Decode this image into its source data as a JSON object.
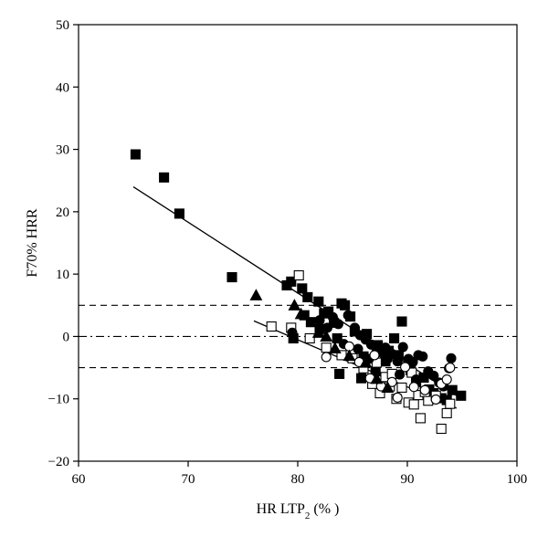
{
  "chart_data": {
    "type": "scatter",
    "xlabel": "HR LTP",
    "xlabel_sub": "2",
    "xlabel_unit": " (% )",
    "ylabel": "F70% HRR",
    "xlim": [
      60,
      100
    ],
    "ylim": [
      -20,
      50
    ],
    "xticks": [
      "60",
      "70",
      "80",
      "90",
      "100"
    ],
    "yticks": [
      "50",
      "40",
      "30",
      "20",
      "10",
      "0",
      "−10",
      "−20"
    ],
    "xtick_values": [
      60,
      70,
      80,
      90,
      100
    ],
    "ytick_values": [
      50,
      40,
      30,
      20,
      10,
      0,
      -10,
      -20
    ],
    "grid": false,
    "reference_lines": [
      {
        "y": 5,
        "style": "dashed"
      },
      {
        "y": 0,
        "style": "dashdot"
      },
      {
        "y": -5,
        "style": "dashed"
      }
    ],
    "regression_lines": [
      {
        "x": [
          65,
          94.5
        ],
        "y": [
          24,
          -9.5
        ]
      },
      {
        "x": [
          76,
          94.5
        ],
        "y": [
          2.5,
          -11.5
        ]
      }
    ],
    "series": [
      {
        "marker": "square-filled",
        "points": [
          [
            65.2,
            29.2
          ],
          [
            67.8,
            25.5
          ],
          [
            69.2,
            19.7
          ],
          [
            74,
            9.5
          ],
          [
            79,
            8.2
          ],
          [
            79.4,
            8.8
          ],
          [
            80.4,
            7.7
          ],
          [
            80.9,
            6.3
          ],
          [
            81.9,
            5.6
          ],
          [
            82.4,
            3.7
          ],
          [
            82.8,
            4.0
          ],
          [
            83.3,
            2.2
          ],
          [
            84.0,
            5.3
          ],
          [
            84.3,
            5.0
          ],
          [
            84.8,
            3.2
          ],
          [
            83.6,
            -0.3
          ],
          [
            83.8,
            -6.0
          ],
          [
            85.8,
            -6.7
          ],
          [
            86.3,
            0.4
          ],
          [
            87.3,
            -1.4
          ],
          [
            87.8,
            -2.1
          ],
          [
            88.3,
            -2.3
          ],
          [
            88.8,
            -0.3
          ],
          [
            89.5,
            2.4
          ],
          [
            90.3,
            -5.4
          ],
          [
            91.5,
            -6.6
          ],
          [
            92.0,
            -8.5
          ],
          [
            92.4,
            -9.1
          ],
          [
            93.1,
            -9.9
          ],
          [
            93.6,
            -10.2
          ],
          [
            94.1,
            -8.6
          ],
          [
            94.9,
            -9.5
          ],
          [
            79.6,
            -0.3
          ],
          [
            80.6,
            3.4
          ],
          [
            81.2,
            2.3
          ],
          [
            82.0,
            1.2
          ],
          [
            85.2,
            0.8
          ],
          [
            86.0,
            -3.2
          ],
          [
            87.1,
            -5.6
          ],
          [
            88.0,
            -4.0
          ],
          [
            89.2,
            -3.0
          ],
          [
            90.8,
            -7.3
          ]
        ]
      },
      {
        "marker": "square-open",
        "points": [
          [
            77.6,
            1.6
          ],
          [
            79.4,
            1.4
          ],
          [
            80.1,
            9.8
          ],
          [
            81.1,
            -0.3
          ],
          [
            82.6,
            -1.8
          ],
          [
            84.0,
            -3.0
          ],
          [
            85.0,
            -3.5
          ],
          [
            86.0,
            -5.1
          ],
          [
            86.8,
            -7.6
          ],
          [
            87.5,
            -9.1
          ],
          [
            88.0,
            -6.5
          ],
          [
            88.4,
            -8.0
          ],
          [
            89.0,
            -10.0
          ],
          [
            89.5,
            -8.2
          ],
          [
            90.1,
            -10.6
          ],
          [
            90.6,
            -10.9
          ],
          [
            91.0,
            -9.4
          ],
          [
            91.2,
            -13.1
          ],
          [
            91.9,
            -10.3
          ],
          [
            92.6,
            -9.5
          ],
          [
            93.1,
            -14.8
          ],
          [
            93.6,
            -12.3
          ],
          [
            93.9,
            -10.8
          ],
          [
            88.6,
            -6.0
          ],
          [
            87.2,
            -4.2
          ],
          [
            90.4,
            -5.8
          ],
          [
            91.6,
            -8.9
          ]
        ]
      },
      {
        "marker": "circle-filled",
        "points": [
          [
            82.0,
            2.6
          ],
          [
            82.7,
            1.4
          ],
          [
            83.2,
            3.1
          ],
          [
            83.7,
            2.0
          ],
          [
            84.6,
            3.4
          ],
          [
            85.2,
            1.4
          ],
          [
            85.7,
            0.2
          ],
          [
            86.2,
            -0.5
          ],
          [
            86.7,
            -1.3
          ],
          [
            87.2,
            -2.3
          ],
          [
            87.7,
            -2.6
          ],
          [
            88.2,
            -3.6
          ],
          [
            88.6,
            -2.8
          ],
          [
            89.1,
            -4.0
          ],
          [
            89.6,
            -1.7
          ],
          [
            90.1,
            -3.6
          ],
          [
            90.5,
            -4.1
          ],
          [
            91.0,
            -3.0
          ],
          [
            91.4,
            -3.2
          ],
          [
            91.9,
            -5.6
          ],
          [
            92.4,
            -6.3
          ],
          [
            92.9,
            -7.4
          ],
          [
            93.3,
            -8.0
          ],
          [
            93.8,
            -5.1
          ],
          [
            94.0,
            -3.5
          ],
          [
            89.3,
            -6.1
          ],
          [
            90.8,
            -6.9
          ],
          [
            88.0,
            -1.8
          ],
          [
            86.5,
            -3.6
          ],
          [
            85.5,
            -2.0
          ],
          [
            84.2,
            -1.2
          ],
          [
            79.5,
            0.6
          ]
        ]
      },
      {
        "marker": "circle-open",
        "points": [
          [
            82.6,
            -3.3
          ],
          [
            84.7,
            -1.6
          ],
          [
            85.6,
            -4.1
          ],
          [
            86.6,
            -6.7
          ],
          [
            87.6,
            -8.0
          ],
          [
            88.6,
            -7.3
          ],
          [
            89.1,
            -9.8
          ],
          [
            90.6,
            -8.1
          ],
          [
            91.6,
            -8.6
          ],
          [
            92.6,
            -10.1
          ],
          [
            93.1,
            -7.6
          ],
          [
            93.6,
            -6.9
          ],
          [
            93.9,
            -5.0
          ],
          [
            87.0,
            -3.0
          ],
          [
            89.8,
            -4.9
          ]
        ]
      },
      {
        "marker": "triangle-filled",
        "points": [
          [
            76.2,
            6.6
          ],
          [
            79.7,
            5.0
          ],
          [
            81.9,
            0.6
          ],
          [
            83.4,
            -1.9
          ],
          [
            84.7,
            -3.1
          ],
          [
            86.2,
            -4.2
          ],
          [
            87.2,
            -6.8
          ],
          [
            88.2,
            -8.2
          ],
          [
            80.3,
            3.6
          ],
          [
            82.6,
            0.0
          ]
        ]
      }
    ]
  }
}
